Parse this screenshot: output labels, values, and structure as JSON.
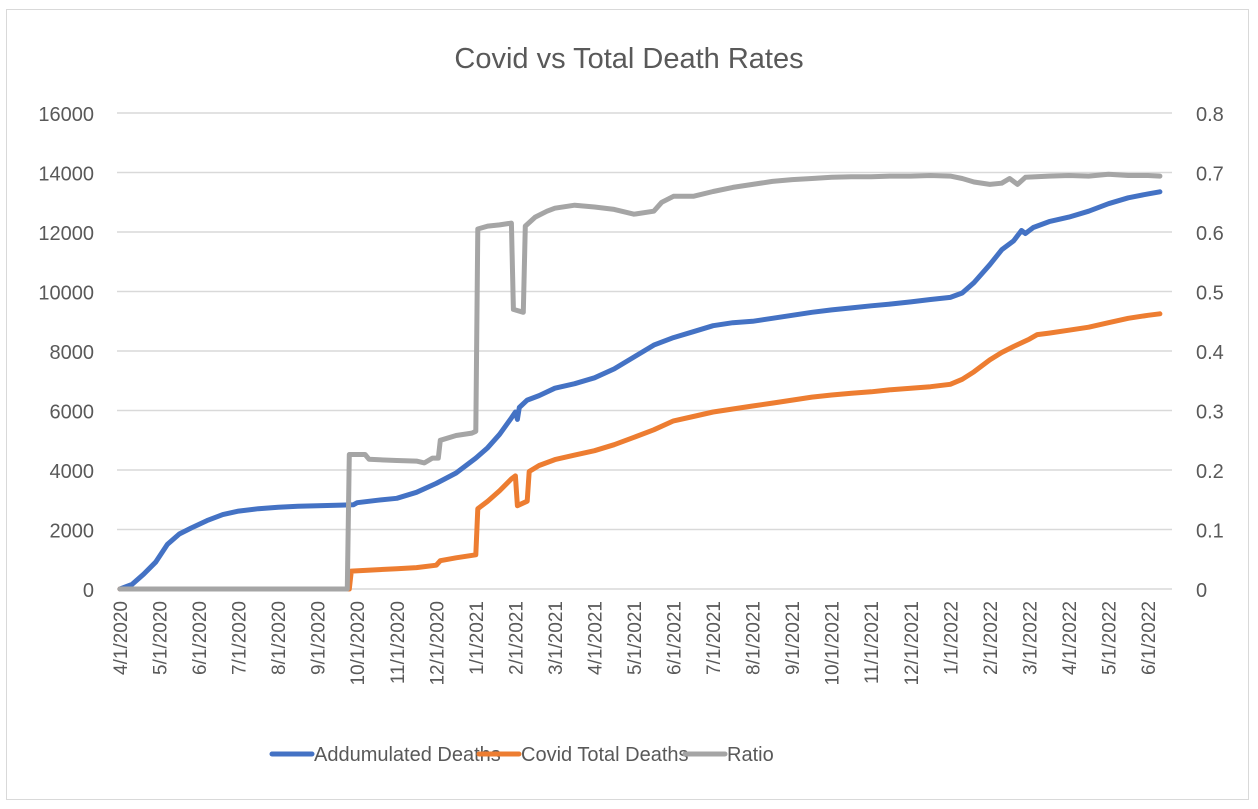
{
  "chart_data": {
    "type": "line",
    "title": "Covid vs Total Death Rates",
    "xlabel": "",
    "ylabel": "",
    "y2label": "",
    "ylim": [
      0,
      16000
    ],
    "y2lim": [
      0,
      0.8
    ],
    "y_ticks": [
      "0",
      "2000",
      "4000",
      "6000",
      "8000",
      "10000",
      "12000",
      "14000",
      "16000"
    ],
    "y2_ticks": [
      "0",
      "0.1",
      "0.2",
      "0.3",
      "0.4",
      "0.5",
      "0.6",
      "0.7",
      "0.8"
    ],
    "x_ticks": [
      "4/1/2020",
      "5/1/2020",
      "6/1/2020",
      "7/1/2020",
      "8/1/2020",
      "9/1/2020",
      "10/1/2020",
      "11/1/2020",
      "12/1/2020",
      "1/1/2021",
      "2/1/2021",
      "3/1/2021",
      "4/1/2021",
      "5/1/2021",
      "6/1/2021",
      "7/1/2021",
      "8/1/2021",
      "9/1/2021",
      "10/1/2021",
      "11/1/2021",
      "12/1/2021",
      "1/1/2022",
      "2/1/2022",
      "3/1/2022",
      "4/1/2022",
      "5/1/2022",
      "6/1/2022"
    ],
    "grid": true,
    "legend_position": "bottom",
    "x_unit": "months since 4/1/2020",
    "series": [
      {
        "name": "Addumulated Deaths",
        "axis": "left",
        "color": "#4472c4",
        "points": [
          [
            0,
            0
          ],
          [
            0.3,
            150
          ],
          [
            0.6,
            500
          ],
          [
            0.9,
            900
          ],
          [
            1.2,
            1500
          ],
          [
            1.5,
            1850
          ],
          [
            1.8,
            2050
          ],
          [
            2.2,
            2300
          ],
          [
            2.6,
            2500
          ],
          [
            3.0,
            2620
          ],
          [
            3.5,
            2700
          ],
          [
            4.0,
            2750
          ],
          [
            4.5,
            2780
          ],
          [
            5.0,
            2800
          ],
          [
            5.6,
            2820
          ],
          [
            5.9,
            2830
          ],
          [
            6.0,
            2900
          ],
          [
            6.5,
            2980
          ],
          [
            7.0,
            3050
          ],
          [
            7.5,
            3250
          ],
          [
            8.0,
            3550
          ],
          [
            8.5,
            3900
          ],
          [
            9.0,
            4400
          ],
          [
            9.3,
            4750
          ],
          [
            9.6,
            5200
          ],
          [
            9.9,
            5750
          ],
          [
            10.0,
            5950
          ],
          [
            10.05,
            5700
          ],
          [
            10.1,
            6100
          ],
          [
            10.3,
            6350
          ],
          [
            10.6,
            6500
          ],
          [
            11.0,
            6750
          ],
          [
            11.5,
            6900
          ],
          [
            12.0,
            7100
          ],
          [
            12.5,
            7400
          ],
          [
            13.0,
            7800
          ],
          [
            13.5,
            8200
          ],
          [
            14.0,
            8450
          ],
          [
            14.5,
            8650
          ],
          [
            15.0,
            8850
          ],
          [
            15.5,
            8950
          ],
          [
            16.0,
            9000
          ],
          [
            16.5,
            9100
          ],
          [
            17.0,
            9200
          ],
          [
            17.5,
            9300
          ],
          [
            18.0,
            9380
          ],
          [
            18.5,
            9450
          ],
          [
            19.0,
            9520
          ],
          [
            19.5,
            9580
          ],
          [
            20.0,
            9650
          ],
          [
            20.5,
            9730
          ],
          [
            21.0,
            9800
          ],
          [
            21.3,
            9950
          ],
          [
            21.6,
            10300
          ],
          [
            22.0,
            10900
          ],
          [
            22.3,
            11400
          ],
          [
            22.6,
            11700
          ],
          [
            22.8,
            12050
          ],
          [
            22.9,
            11950
          ],
          [
            23.1,
            12150
          ],
          [
            23.5,
            12350
          ],
          [
            24.0,
            12500
          ],
          [
            24.5,
            12700
          ],
          [
            25.0,
            12950
          ],
          [
            25.5,
            13150
          ],
          [
            26.0,
            13280
          ],
          [
            26.3,
            13350
          ]
        ]
      },
      {
        "name": "Covid Total Deaths",
        "axis": "left",
        "color": "#ed7d31",
        "points": [
          [
            0,
            0
          ],
          [
            5.8,
            0
          ],
          [
            5.85,
            600
          ],
          [
            6.5,
            650
          ],
          [
            7.0,
            680
          ],
          [
            7.5,
            720
          ],
          [
            8.0,
            800
          ],
          [
            8.1,
            950
          ],
          [
            8.5,
            1050
          ],
          [
            9.0,
            1150
          ],
          [
            9.05,
            2700
          ],
          [
            9.3,
            2950
          ],
          [
            9.6,
            3300
          ],
          [
            9.9,
            3700
          ],
          [
            10.0,
            3800
          ],
          [
            10.05,
            2800
          ],
          [
            10.3,
            2950
          ],
          [
            10.35,
            3950
          ],
          [
            10.6,
            4150
          ],
          [
            11.0,
            4350
          ],
          [
            11.5,
            4500
          ],
          [
            12.0,
            4650
          ],
          [
            12.5,
            4850
          ],
          [
            13.0,
            5100
          ],
          [
            13.5,
            5350
          ],
          [
            14.0,
            5650
          ],
          [
            14.5,
            5800
          ],
          [
            15.0,
            5950
          ],
          [
            15.5,
            6050
          ],
          [
            16.0,
            6150
          ],
          [
            16.5,
            6250
          ],
          [
            17.0,
            6350
          ],
          [
            17.5,
            6450
          ],
          [
            18.0,
            6520
          ],
          [
            18.5,
            6580
          ],
          [
            19.0,
            6630
          ],
          [
            19.5,
            6700
          ],
          [
            20.0,
            6750
          ],
          [
            20.5,
            6800
          ],
          [
            21.0,
            6880
          ],
          [
            21.3,
            7050
          ],
          [
            21.6,
            7300
          ],
          [
            22.0,
            7700
          ],
          [
            22.3,
            7950
          ],
          [
            22.6,
            8150
          ],
          [
            23.0,
            8400
          ],
          [
            23.2,
            8550
          ],
          [
            23.5,
            8600
          ],
          [
            24.0,
            8700
          ],
          [
            24.5,
            8800
          ],
          [
            25.0,
            8950
          ],
          [
            25.5,
            9100
          ],
          [
            26.0,
            9200
          ],
          [
            26.3,
            9250
          ]
        ]
      },
      {
        "name": "Ratio",
        "axis": "right",
        "color": "#a5a5a5",
        "points": [
          [
            0,
            0
          ],
          [
            5.75,
            0
          ],
          [
            5.8,
            0.226
          ],
          [
            6.2,
            0.226
          ],
          [
            6.3,
            0.218
          ],
          [
            7.0,
            0.216
          ],
          [
            7.5,
            0.215
          ],
          [
            7.7,
            0.212
          ],
          [
            7.9,
            0.22
          ],
          [
            8.05,
            0.22
          ],
          [
            8.1,
            0.25
          ],
          [
            8.5,
            0.258
          ],
          [
            8.9,
            0.262
          ],
          [
            9.0,
            0.265
          ],
          [
            9.05,
            0.605
          ],
          [
            9.3,
            0.61
          ],
          [
            9.6,
            0.612
          ],
          [
            9.9,
            0.615
          ],
          [
            9.95,
            0.47
          ],
          [
            10.2,
            0.465
          ],
          [
            10.25,
            0.61
          ],
          [
            10.5,
            0.625
          ],
          [
            10.8,
            0.635
          ],
          [
            11.0,
            0.64
          ],
          [
            11.5,
            0.645
          ],
          [
            12.0,
            0.642
          ],
          [
            12.5,
            0.638
          ],
          [
            13.0,
            0.63
          ],
          [
            13.5,
            0.635
          ],
          [
            13.7,
            0.65
          ],
          [
            14.0,
            0.66
          ],
          [
            14.5,
            0.66
          ],
          [
            15.0,
            0.668
          ],
          [
            15.5,
            0.675
          ],
          [
            16.0,
            0.68
          ],
          [
            16.5,
            0.685
          ],
          [
            17.0,
            0.688
          ],
          [
            17.5,
            0.69
          ],
          [
            18.0,
            0.692
          ],
          [
            18.5,
            0.693
          ],
          [
            19.0,
            0.693
          ],
          [
            19.5,
            0.694
          ],
          [
            20.0,
            0.694
          ],
          [
            20.5,
            0.695
          ],
          [
            21.0,
            0.694
          ],
          [
            21.3,
            0.69
          ],
          [
            21.6,
            0.684
          ],
          [
            22.0,
            0.68
          ],
          [
            22.3,
            0.682
          ],
          [
            22.5,
            0.69
          ],
          [
            22.7,
            0.68
          ],
          [
            22.9,
            0.692
          ],
          [
            23.5,
            0.694
          ],
          [
            24.0,
            0.695
          ],
          [
            24.5,
            0.694
          ],
          [
            25.0,
            0.697
          ],
          [
            25.5,
            0.695
          ],
          [
            26.0,
            0.695
          ],
          [
            26.3,
            0.694
          ]
        ]
      }
    ]
  }
}
